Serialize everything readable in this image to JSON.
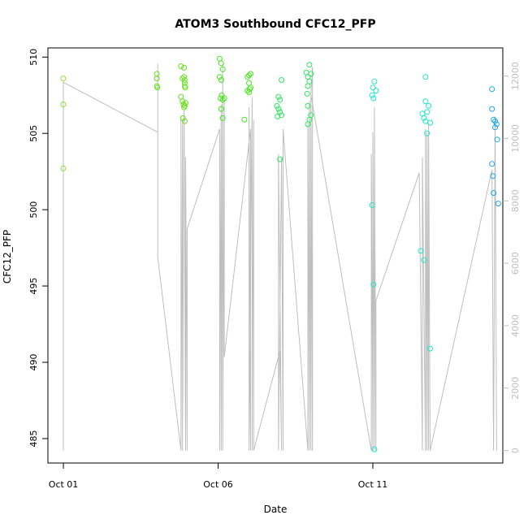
{
  "chart_data": {
    "type": "scatter",
    "title": "ATOM3 Southbound CFC12_PFP",
    "xlabel": "Date",
    "ylabel": "CFC12_PFP",
    "x_ticks": [
      "Oct 01",
      "Oct 06",
      "Oct 11"
    ],
    "x_tick_values": [
      0,
      5,
      10
    ],
    "xlim": [
      -0.5,
      14.2
    ],
    "y_ticks": [
      485,
      490,
      495,
      500,
      505,
      510
    ],
    "ylim": [
      483.4,
      510.6
    ],
    "y2_ticks": [
      0,
      2000,
      4000,
      6000,
      8000,
      10000,
      12000
    ],
    "y2lim": [
      -400,
      12900
    ],
    "y2_color": "#bebebe",
    "grid": false,
    "series": [
      {
        "color": "#9ADE3A",
        "points": [
          [
            0.0,
            508.6
          ],
          [
            0.0,
            506.9
          ],
          [
            0.0,
            502.7
          ]
        ]
      },
      {
        "color": "#66E01E",
        "points": [
          [
            3.02,
            508.9
          ],
          [
            3.02,
            508.6
          ],
          [
            3.02,
            508.1
          ],
          [
            3.04,
            508.0
          ],
          [
            3.8,
            509.4
          ],
          [
            3.85,
            508.6
          ],
          [
            3.9,
            509.3
          ],
          [
            3.9,
            508.7
          ],
          [
            3.92,
            508.5
          ],
          [
            3.92,
            508.3
          ],
          [
            3.92,
            508.1
          ],
          [
            3.94,
            508.0
          ],
          [
            3.8,
            507.4
          ],
          [
            3.85,
            507.1
          ],
          [
            3.88,
            506.9
          ],
          [
            3.9,
            506.7
          ],
          [
            3.92,
            506.8
          ],
          [
            3.95,
            507.0
          ],
          [
            3.86,
            506.0
          ],
          [
            3.92,
            505.8
          ]
        ]
      },
      {
        "color": "#46E81C",
        "points": [
          [
            5.05,
            509.9
          ],
          [
            5.1,
            509.6
          ],
          [
            5.15,
            509.2
          ],
          [
            5.05,
            508.7
          ],
          [
            5.1,
            508.5
          ],
          [
            5.12,
            507.5
          ],
          [
            5.08,
            507.3
          ],
          [
            5.15,
            507.2
          ],
          [
            5.2,
            507.3
          ],
          [
            5.1,
            506.6
          ],
          [
            5.15,
            506.0
          ],
          [
            5.95,
            508.7
          ],
          [
            6.0,
            508.8
          ],
          [
            6.05,
            508.9
          ],
          [
            6.0,
            508.3
          ],
          [
            6.05,
            508.0
          ],
          [
            5.95,
            507.8
          ],
          [
            6.0,
            507.7
          ],
          [
            6.02,
            507.9
          ],
          [
            5.85,
            505.9
          ]
        ]
      },
      {
        "color": "#2EE860",
        "points": [
          [
            7.05,
            508.5
          ],
          [
            6.95,
            507.4
          ],
          [
            7.0,
            507.2
          ],
          [
            6.9,
            506.8
          ],
          [
            6.95,
            506.6
          ],
          [
            7.0,
            506.4
          ],
          [
            6.92,
            506.1
          ],
          [
            7.05,
            506.2
          ],
          [
            7.0,
            503.3
          ],
          [
            7.85,
            509.0
          ],
          [
            7.9,
            508.7
          ],
          [
            7.95,
            509.5
          ],
          [
            8.0,
            508.9
          ],
          [
            7.95,
            508.4
          ],
          [
            7.9,
            508.1
          ],
          [
            7.88,
            507.6
          ],
          [
            7.9,
            506.8
          ],
          [
            8.0,
            506.2
          ],
          [
            7.95,
            505.9
          ],
          [
            7.9,
            505.6
          ]
        ]
      },
      {
        "color": "#1EE8C8",
        "points": [
          [
            10.05,
            508.4
          ],
          [
            10.0,
            508.0
          ],
          [
            10.1,
            507.8
          ],
          [
            9.98,
            507.5
          ],
          [
            10.02,
            507.3
          ],
          [
            9.98,
            500.3
          ],
          [
            10.02,
            495.1
          ],
          [
            10.05,
            484.3
          ],
          [
            11.7,
            508.7
          ],
          [
            11.7,
            507.1
          ],
          [
            11.8,
            506.8
          ],
          [
            11.75,
            506.4
          ],
          [
            11.6,
            506.3
          ],
          [
            11.65,
            506.0
          ],
          [
            11.7,
            505.8
          ],
          [
            11.85,
            505.7
          ],
          [
            11.75,
            505.0
          ],
          [
            11.55,
            497.3
          ],
          [
            11.65,
            496.7
          ],
          [
            11.85,
            490.9
          ]
        ]
      },
      {
        "color": "#1AA8E8",
        "points": [
          [
            13.85,
            507.9
          ],
          [
            13.85,
            506.6
          ],
          [
            13.9,
            505.9
          ],
          [
            13.95,
            505.8
          ],
          [
            14.0,
            505.6
          ],
          [
            13.95,
            505.4
          ],
          [
            14.02,
            504.6
          ],
          [
            13.85,
            503.0
          ],
          [
            13.88,
            502.2
          ],
          [
            13.9,
            501.1
          ],
          [
            14.05,
            500.4
          ]
        ]
      }
    ],
    "secondary_line": {
      "color": "#bebebe",
      "points": [
        [
          0.0,
          0
        ],
        [
          0.0,
          11800
        ],
        [
          3.05,
          10200
        ],
        [
          3.05,
          12400
        ],
        [
          3.05,
          6500
        ],
        [
          3.05,
          6500
        ],
        [
          3.05,
          6200
        ],
        [
          3.8,
          0
        ],
        [
          3.8,
          10700
        ],
        [
          3.8,
          0
        ],
        [
          3.85,
          10600
        ],
        [
          3.85,
          0
        ],
        [
          3.9,
          10900
        ],
        [
          3.95,
          0
        ],
        [
          3.95,
          9400
        ],
        [
          4.0,
          0
        ],
        [
          4.0,
          7100
        ],
        [
          5.05,
          10300
        ],
        [
          5.05,
          0
        ],
        [
          5.1,
          11100
        ],
        [
          5.1,
          0
        ],
        [
          5.15,
          12400
        ],
        [
          5.15,
          0
        ],
        [
          5.2,
          11200
        ],
        [
          5.2,
          3000
        ],
        [
          6.05,
          10300
        ],
        [
          6.05,
          0
        ],
        [
          6.0,
          11000
        ],
        [
          6.0,
          0
        ],
        [
          6.1,
          11300
        ],
        [
          6.1,
          0
        ],
        [
          6.15,
          10600
        ],
        [
          6.15,
          0
        ],
        [
          7.0,
          3200
        ],
        [
          7.05,
          0
        ],
        [
          6.95,
          9500
        ],
        [
          6.95,
          0
        ],
        [
          7.05,
          9400
        ],
        [
          7.1,
          0
        ],
        [
          7.1,
          10300
        ],
        [
          7.9,
          0
        ],
        [
          7.9,
          10500
        ],
        [
          7.95,
          0
        ],
        [
          7.95,
          11200
        ],
        [
          8.0,
          0
        ],
        [
          8.0,
          11400
        ],
        [
          8.05,
          0
        ],
        [
          8.05,
          12300
        ],
        [
          8.0,
          11400
        ],
        [
          9.95,
          0
        ],
        [
          9.95,
          9500
        ],
        [
          10.0,
          0
        ],
        [
          10.0,
          10200
        ],
        [
          10.05,
          0
        ],
        [
          10.05,
          11000
        ],
        [
          10.1,
          0
        ],
        [
          10.1,
          4800
        ],
        [
          11.5,
          8900
        ],
        [
          11.6,
          0
        ],
        [
          11.6,
          9400
        ],
        [
          11.7,
          0
        ],
        [
          11.7,
          10300
        ],
        [
          11.75,
          0
        ],
        [
          11.75,
          10200
        ],
        [
          11.8,
          0
        ],
        [
          11.8,
          10500
        ],
        [
          11.85,
          0
        ],
        [
          13.85,
          9000
        ],
        [
          13.9,
          0
        ],
        [
          13.95,
          10700
        ],
        [
          14.0,
          0
        ]
      ]
    }
  }
}
